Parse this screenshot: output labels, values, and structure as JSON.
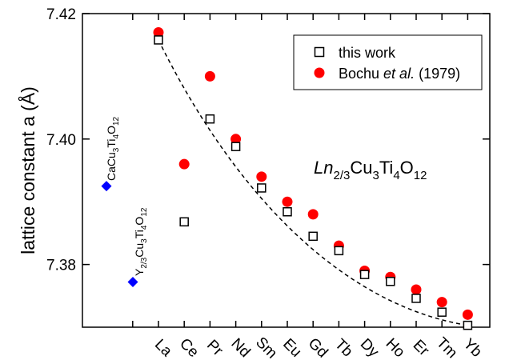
{
  "chart_data": {
    "type": "scatter",
    "title": "",
    "ylabel": "lattice constant a (Å)",
    "xlabel": "",
    "ylim": [
      7.37,
      7.42
    ],
    "yticks": [
      7.38,
      7.4,
      7.42
    ],
    "categories": [
      "La",
      "Ce",
      "Pr",
      "Nd",
      "Sm",
      "Eu",
      "Gd",
      "Tb",
      "Dy",
      "Ho",
      "Er",
      "Tm",
      "Yb"
    ],
    "series": [
      {
        "name": "this work",
        "marker": "open-square",
        "color": "#000000",
        "values": [
          7.4158,
          7.3868,
          7.4032,
          7.3988,
          7.3922,
          7.3884,
          7.3845,
          7.3822,
          7.3784,
          7.3773,
          7.3746,
          7.3724,
          7.3703
        ]
      },
      {
        "name": "Bochu et al. (1979)",
        "name_parts": [
          "Bochu ",
          "et al.",
          " (1979)"
        ],
        "marker": "filled-circle",
        "color": "#ff0000",
        "values": [
          7.417,
          7.396,
          7.41,
          7.4,
          7.394,
          7.39,
          7.388,
          7.383,
          7.379,
          7.378,
          7.376,
          7.374,
          7.372
        ]
      }
    ],
    "fit_line": {
      "style": "dashed",
      "color": "#000000",
      "from_category": "La",
      "to_category": "Yb",
      "start_value": 7.4158,
      "end_value": 7.3703
    },
    "reference_points": [
      {
        "label_base": "CaCu",
        "sub1": "3",
        "mid": "Ti",
        "sub2": "4",
        "end": "O",
        "sub3": "12",
        "value": 7.3925,
        "color": "#0000ff",
        "marker": "filled-diamond"
      },
      {
        "label_base": "Y",
        "sub0": "2/3",
        "label_mid0": "Cu",
        "sub1": "3",
        "mid": "Ti",
        "sub2": "4",
        "end": "O",
        "sub3": "12",
        "value": 7.3772,
        "color": "#0000ff",
        "marker": "filled-diamond"
      }
    ],
    "annotation": {
      "ln": "Ln",
      "sub_ln": "2/3",
      "cu": "Cu",
      "sub_cu": "3",
      "ti": "Ti",
      "sub_ti": "4",
      "o": "O",
      "sub_o": "12"
    },
    "legend_position": "top-right",
    "grid": false
  }
}
